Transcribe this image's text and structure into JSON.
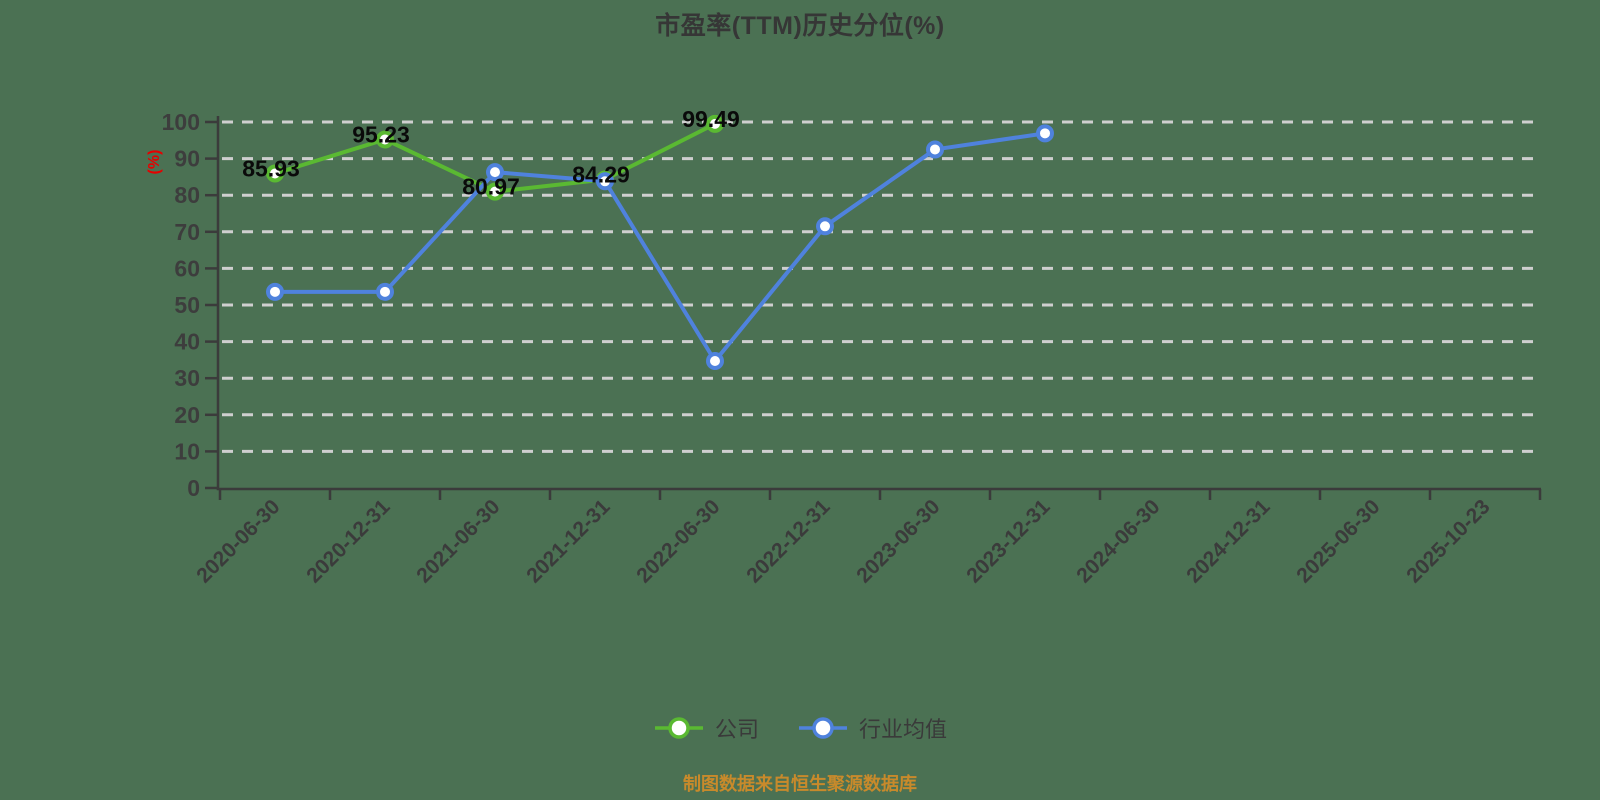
{
  "title": "市盈率(TTM)历史分位(%)",
  "y_axis_name": "(%)",
  "footer": "制图数据来自恒生聚源数据库",
  "colors": {
    "background": "#4b7153",
    "grid": "#cfcfcf",
    "axis": "#3b3b3b",
    "tick_text": "#3d3d3d",
    "data_label": "#0a0a0a",
    "axis_name_red": "#e60000",
    "footer_orange": "#c88a2b",
    "company_green": "#5ab932",
    "industry_blue": "#4f82dd"
  },
  "chart_data": {
    "type": "line",
    "title": "市盈率(TTM)历史分位(%)",
    "ylabel": "(%)",
    "ylim": [
      0,
      100
    ],
    "y_tick_step": 10,
    "grid": "horizontal-dashed",
    "legend_position": "bottom",
    "x_label_rotation": 45,
    "categories": [
      "2020-06-30",
      "2020-12-31",
      "2021-06-30",
      "2021-12-31",
      "2022-06-30",
      "2022-12-31",
      "2023-06-30",
      "2023-12-31",
      "2024-06-30",
      "2024-12-31",
      "2025-06-30",
      "2025-10-23"
    ],
    "series": [
      {
        "name": "公司",
        "color": "#5ab932",
        "values": [
          85.93,
          95.23,
          80.97,
          84.29,
          99.49
        ],
        "labels": [
          "85.93",
          "95.23",
          "80.97",
          "84.29",
          "99.49"
        ],
        "show_labels": true
      },
      {
        "name": "行业均值",
        "color": "#4f82dd",
        "values": [
          53.6,
          53.6,
          86.3,
          83.8,
          34.7,
          71.5,
          92.5,
          96.9
        ],
        "show_labels": false
      }
    ]
  }
}
